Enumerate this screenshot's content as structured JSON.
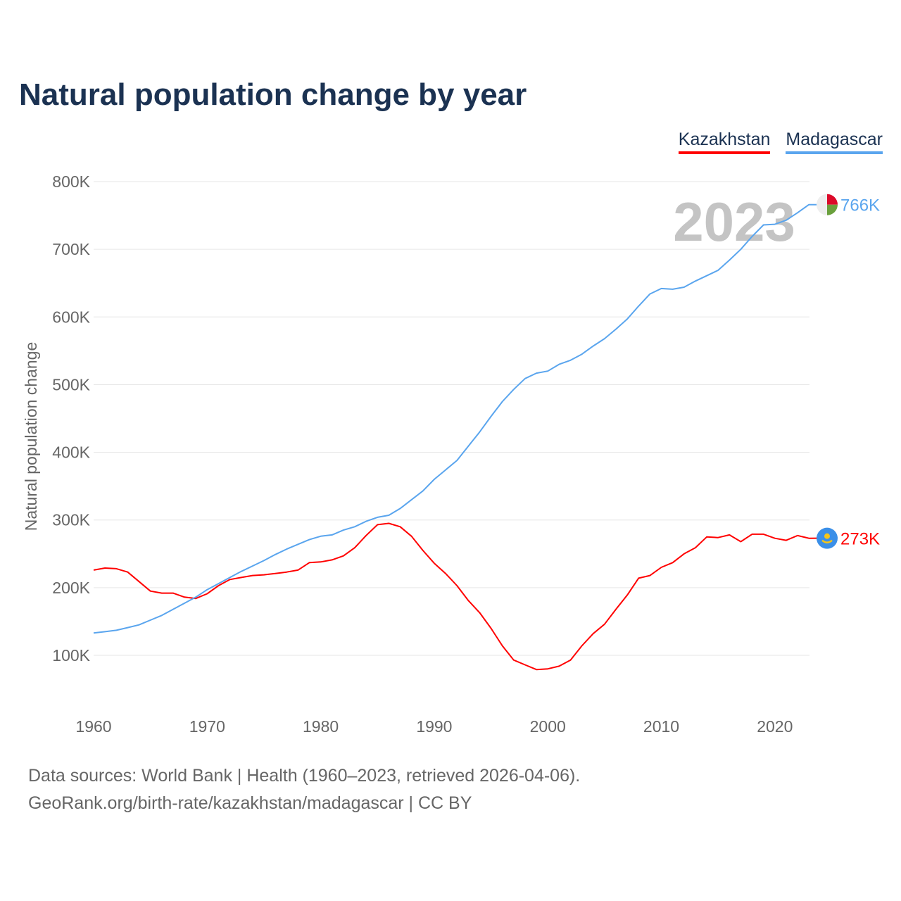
{
  "chart_data": {
    "type": "line",
    "title": "Natural population change by year",
    "xlabel": "",
    "ylabel": "Natural population change",
    "xlim": [
      1960,
      2023
    ],
    "ylim": [
      30000,
      800000
    ],
    "y_ticks": [
      100000,
      200000,
      300000,
      400000,
      500000,
      600000,
      700000,
      800000
    ],
    "y_tick_labels": [
      "100K",
      "200K",
      "300K",
      "400K",
      "500K",
      "600K",
      "700K",
      "800K"
    ],
    "x_ticks": [
      1960,
      1970,
      1980,
      1990,
      2000,
      2010,
      2020
    ],
    "x_tick_labels": [
      "1960",
      "1970",
      "1980",
      "1990",
      "2000",
      "2010",
      "2020"
    ],
    "grid": true,
    "legend_placement": "top-right",
    "year_label": "2023",
    "x": [
      1960,
      1961,
      1962,
      1963,
      1964,
      1965,
      1966,
      1967,
      1968,
      1969,
      1970,
      1971,
      1972,
      1973,
      1974,
      1975,
      1976,
      1977,
      1978,
      1979,
      1980,
      1981,
      1982,
      1983,
      1984,
      1985,
      1986,
      1987,
      1988,
      1989,
      1990,
      1991,
      1992,
      1993,
      1994,
      1995,
      1996,
      1997,
      1998,
      1999,
      2000,
      2001,
      2002,
      2003,
      2004,
      2005,
      2006,
      2007,
      2008,
      2009,
      2010,
      2011,
      2012,
      2013,
      2014,
      2015,
      2016,
      2017,
      2018,
      2019,
      2020,
      2021,
      2022,
      2023
    ],
    "series": [
      {
        "name": "Kazakhstan",
        "color": "#ff0000",
        "end_label": "273K",
        "values": [
          226,
          229,
          228,
          223,
          209,
          195,
          192,
          192,
          186,
          184,
          191,
          203,
          212,
          215,
          218,
          219,
          221,
          223,
          226,
          237,
          238,
          241,
          247,
          259,
          277,
          293,
          295,
          290,
          276,
          255,
          236,
          221,
          203,
          181,
          163,
          140,
          114,
          93,
          86,
          79,
          80,
          84,
          93,
          114,
          132,
          146,
          168,
          189,
          214,
          218,
          230,
          237,
          250,
          259,
          275,
          274,
          278,
          268,
          279,
          279,
          273,
          270,
          277,
          273
        ]
      },
      {
        "name": "Madagascar",
        "color": "#5aa5ee",
        "end_label": "766K",
        "values": [
          133,
          135,
          137,
          141,
          145,
          152,
          159,
          168,
          177,
          186,
          197,
          206,
          215,
          224,
          232,
          240,
          249,
          257,
          264,
          271,
          276,
          278,
          285,
          290,
          298,
          304,
          307,
          317,
          330,
          343,
          360,
          374,
          388,
          409,
          430,
          453,
          475,
          493,
          509,
          517,
          520,
          530,
          536,
          545,
          557,
          568,
          582,
          597,
          616,
          634,
          642,
          641,
          644,
          653,
          661,
          669,
          684,
          700,
          719,
          736,
          737,
          743,
          754,
          766
        ]
      }
    ],
    "value_unit": "thousands"
  },
  "footer": {
    "line1": "Data sources: World Bank | Health (1960–2023, retrieved 2026-04-06).",
    "line2": "GeoRank.org/birth-rate/kazakhstan/madagascar | CC BY"
  }
}
